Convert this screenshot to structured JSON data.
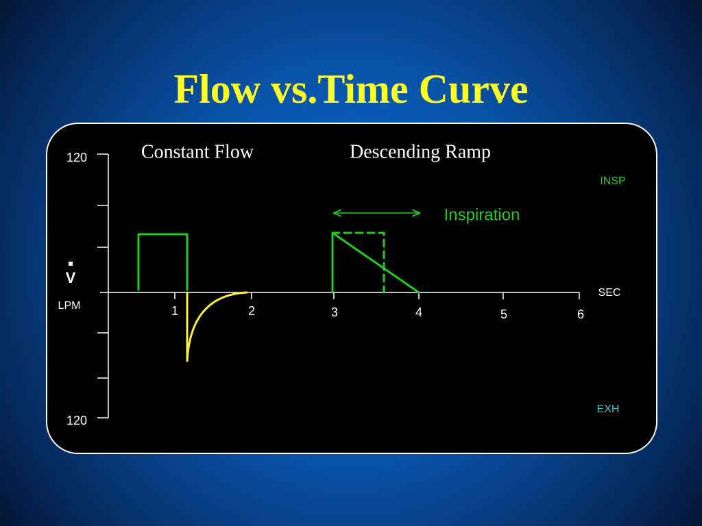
{
  "title": "Flow vs.Time Curve",
  "panel": {
    "headings": [
      "Constant Flow",
      "Descending Ramp"
    ],
    "annotation": "Inspiration",
    "y_axis": {
      "symbol": "V",
      "unit": "LPM",
      "top_label": "120",
      "bottom_label": "120"
    },
    "x_axis": {
      "unit": "SEC",
      "ticks": [
        "1",
        "2",
        "3",
        "4",
        "5",
        "6"
      ]
    },
    "regions": {
      "insp": "INSP",
      "exh": "EXH"
    }
  }
}
